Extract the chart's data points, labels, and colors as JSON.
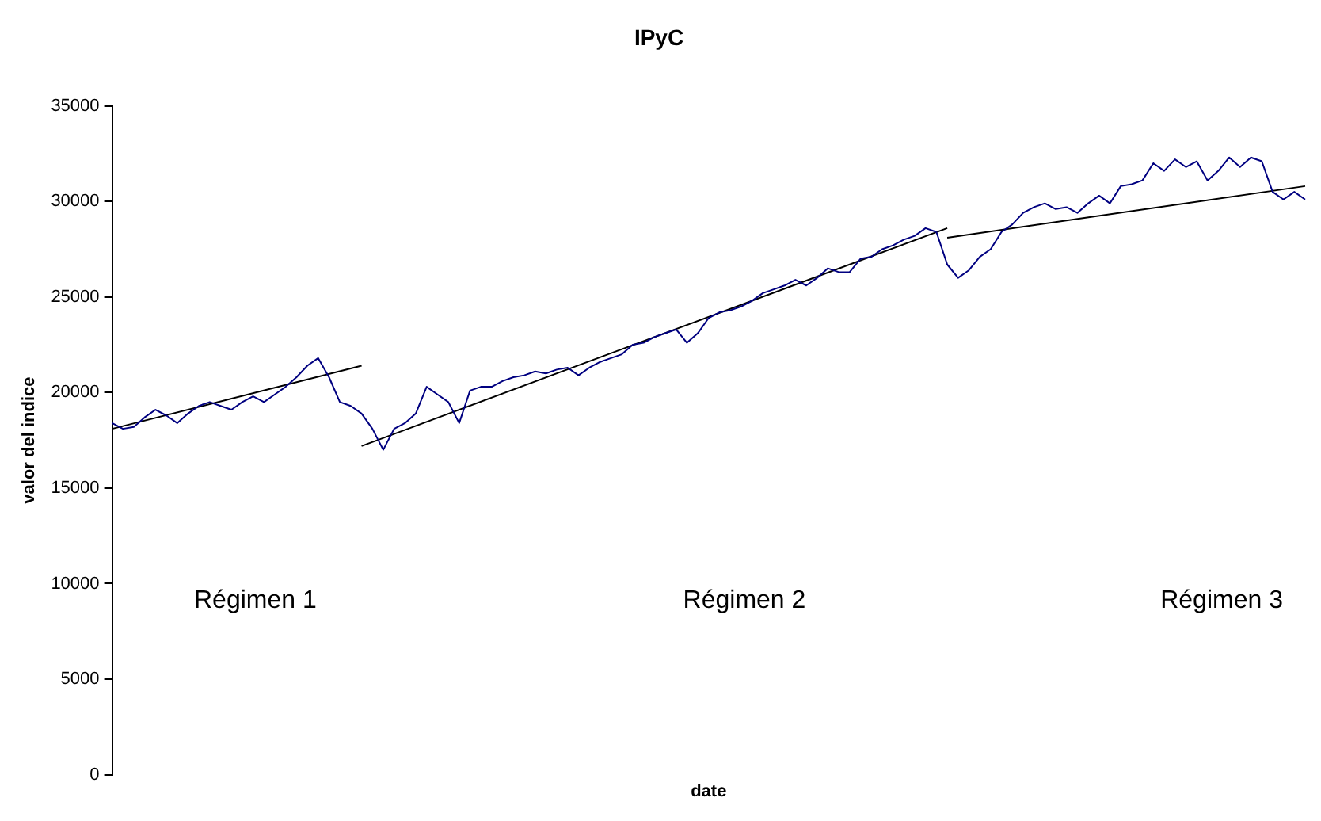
{
  "chart_data": {
    "type": "line",
    "title": "IPyC",
    "xlabel": "date",
    "ylabel": "valor del indice",
    "categories": [
      null,
      null,
      null,
      null,
      null,
      null,
      null,
      null,
      null,
      null,
      null,
      null,
      null,
      null,
      null,
      null,
      null,
      null,
      null,
      null,
      null,
      null,
      null,
      null,
      null,
      null,
      null,
      null,
      null,
      null,
      null,
      null,
      null,
      null,
      null,
      null,
      null,
      null,
      null,
      null,
      null,
      null,
      null,
      null,
      null,
      null,
      null,
      null,
      null,
      null,
      null,
      null,
      null,
      null,
      null,
      null,
      null,
      null,
      null,
      null,
      null,
      null,
      null,
      null,
      null,
      null,
      null,
      null,
      null,
      null,
      null,
      null,
      null,
      null,
      null,
      null,
      null,
      null,
      null,
      null,
      null,
      null,
      null,
      null,
      null,
      null,
      null,
      null,
      null,
      null,
      null,
      null,
      null,
      null,
      null,
      null,
      null,
      null,
      null,
      null,
      null,
      null,
      null,
      null,
      null,
      null,
      null,
      null,
      null,
      null,
      null
    ],
    "series": [
      {
        "color": "#000080",
        "values": [
          18400,
          18100,
          18200,
          18700,
          19100,
          18800,
          18400,
          18900,
          19300,
          19500,
          19300,
          19100,
          19500,
          19800,
          19500,
          19900,
          20300,
          20800,
          21400,
          21800,
          20800,
          19500,
          19300,
          18900,
          18100,
          17000,
          18100,
          18400,
          18900,
          20300,
          19900,
          19500,
          18400,
          20100,
          20300,
          20300,
          20600,
          20800,
          20900,
          21100,
          21000,
          21200,
          21300,
          20900,
          21300,
          21600,
          21800,
          22000,
          22500,
          22600,
          22900,
          23100,
          23300,
          22600,
          23100,
          23900,
          24200,
          24300,
          24500,
          24800,
          25200,
          25400,
          25600,
          25900,
          25600,
          26000,
          26500,
          26300,
          26300,
          27000,
          27100,
          27500,
          27700,
          28000,
          28200,
          28600,
          28400,
          26700,
          26000,
          26400,
          27100,
          27500,
          28400,
          28800,
          29400,
          29700,
          29900,
          29600,
          29700,
          29400,
          29900,
          30300,
          29900,
          30800,
          30900,
          31100,
          32000,
          31600,
          32200,
          31800,
          32100,
          31100,
          31600,
          32300,
          31800,
          32300,
          32100,
          30500,
          30100,
          30500,
          30100
        ]
      },
      {
        "type": "line",
        "color": "#000000",
        "values": [
          18100,
          null,
          null,
          null,
          null,
          null,
          null,
          null,
          null,
          null,
          null,
          null,
          null,
          null,
          null,
          null,
          null,
          null,
          null,
          null,
          null,
          null,
          null,
          21400,
          null,
          null,
          null,
          null,
          null,
          null,
          null,
          null,
          null,
          null,
          null,
          null,
          null,
          null,
          null,
          null,
          null,
          null,
          null,
          null,
          null,
          null,
          null,
          null,
          null,
          null,
          null,
          null,
          null,
          null,
          null,
          null,
          null,
          null,
          null,
          null,
          null,
          null,
          null,
          null,
          null,
          null,
          null,
          null,
          null,
          null,
          null,
          null,
          null,
          null,
          null,
          null,
          null,
          null,
          null,
          null,
          null,
          null,
          null,
          null,
          null,
          null,
          null,
          null,
          null,
          null,
          null,
          null,
          null,
          null,
          null,
          null,
          null,
          null,
          null,
          null,
          null,
          null,
          null,
          null,
          null,
          null,
          null,
          null,
          null,
          null,
          null
        ]
      },
      {
        "type": "line",
        "color": "#000000",
        "values": [
          null,
          null,
          null,
          null,
          null,
          null,
          null,
          null,
          null,
          null,
          null,
          null,
          null,
          null,
          null,
          null,
          null,
          null,
          null,
          null,
          null,
          null,
          null,
          17200,
          null,
          null,
          null,
          null,
          null,
          null,
          null,
          null,
          null,
          null,
          null,
          null,
          null,
          null,
          null,
          null,
          null,
          null,
          null,
          null,
          null,
          null,
          null,
          null,
          null,
          null,
          null,
          null,
          null,
          null,
          null,
          null,
          null,
          null,
          null,
          null,
          null,
          null,
          null,
          null,
          null,
          null,
          null,
          null,
          null,
          null,
          null,
          null,
          null,
          null,
          null,
          null,
          null,
          28600,
          null,
          null,
          null,
          null,
          null,
          null,
          null,
          null,
          null,
          null,
          null,
          null,
          null,
          null,
          null,
          null,
          null,
          null,
          null,
          null,
          null,
          null,
          null,
          null,
          null,
          null,
          null,
          null,
          null,
          null,
          null,
          null,
          null
        ]
      },
      {
        "type": "line",
        "color": "#000000",
        "values": [
          null,
          null,
          null,
          null,
          null,
          null,
          null,
          null,
          null,
          null,
          null,
          null,
          null,
          null,
          null,
          null,
          null,
          null,
          null,
          null,
          null,
          null,
          null,
          null,
          null,
          null,
          null,
          null,
          null,
          null,
          null,
          null,
          null,
          null,
          null,
          null,
          null,
          null,
          null,
          null,
          null,
          null,
          null,
          null,
          null,
          null,
          null,
          null,
          null,
          null,
          null,
          null,
          null,
          null,
          null,
          null,
          null,
          null,
          null,
          null,
          null,
          null,
          null,
          null,
          null,
          null,
          null,
          null,
          null,
          null,
          null,
          null,
          null,
          null,
          null,
          null,
          null,
          28100,
          null,
          null,
          null,
          null,
          null,
          null,
          null,
          null,
          null,
          null,
          null,
          null,
          null,
          null,
          null,
          null,
          null,
          null,
          null,
          null,
          null,
          null,
          null,
          null,
          null,
          null,
          null,
          null,
          null,
          null,
          null,
          null,
          30800
        ]
      }
    ],
    "ylim": [
      0,
      35000
    ],
    "yticks": [
      0,
      5000,
      10000,
      15000,
      20000,
      25000,
      30000,
      35000
    ],
    "annotations": [
      "Régimen 1",
      "Régimen 2",
      "Régimen 3"
    ],
    "tick_labels": "y",
    "grid": false,
    "legend": false,
    "marker": "none",
    "line_style": "solid"
  }
}
